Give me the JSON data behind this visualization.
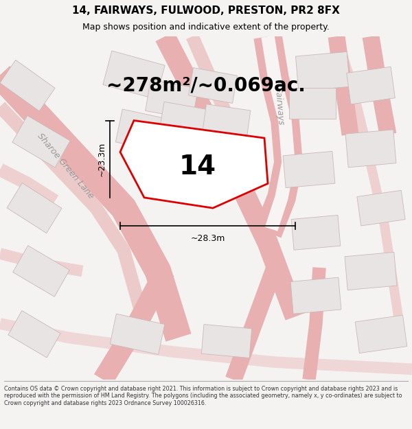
{
  "title_line1": "14, FAIRWAYS, FULWOOD, PRESTON, PR2 8FX",
  "title_line2": "Map shows position and indicative extent of the property.",
  "area_text": "~278m²/~0.069ac.",
  "plot_number": "14",
  "dim_horizontal": "~28.3m",
  "dim_vertical": "~23.3m",
  "footer_text": "Contains OS data © Crown copyright and database right 2021. This information is subject to Crown copyright and database rights 2023 and is reproduced with the permission of HM Land Registry. The polygons (including the associated geometry, namely x, y co-ordinates) are subject to Crown copyright and database rights 2023 Ordnance Survey 100026316.",
  "bg_color": "#f5f2f2",
  "map_bg_color": "#ffffff",
  "road_stroke_color": "#e8b0b0",
  "road_fill_color": "#ffffff",
  "plot_fill": "#ffffff",
  "plot_edge_color": "#dd0000",
  "block_fill": "#e8e4e4",
  "block_edge": "#ccb8b8",
  "dim_line_color": "#000000",
  "street_label_color": "#999999",
  "text_color": "#000000",
  "footer_color": "#333333",
  "title_fontsize": 11,
  "subtitle_fontsize": 9,
  "area_fontsize": 20,
  "plot_num_fontsize": 28,
  "dim_fontsize": 9,
  "street_fontsize": 9,
  "footer_fontsize": 5.8
}
